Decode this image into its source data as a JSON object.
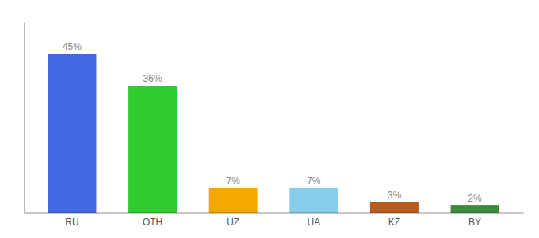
{
  "chart_data": {
    "type": "bar",
    "categories": [
      "RU",
      "OTH",
      "UZ",
      "UA",
      "KZ",
      "BY"
    ],
    "values": [
      45,
      36,
      7,
      7,
      3,
      2
    ],
    "value_labels": [
      "45%",
      "36%",
      "7%",
      "7%",
      "3%",
      "2%"
    ],
    "colors": [
      "#4169e1",
      "#2ecc2e",
      "#f5a800",
      "#87ceeb",
      "#b85c1e",
      "#3a8c3a"
    ],
    "ylim": [
      0,
      54
    ],
    "data_labels": true,
    "tick_labels": "x"
  }
}
